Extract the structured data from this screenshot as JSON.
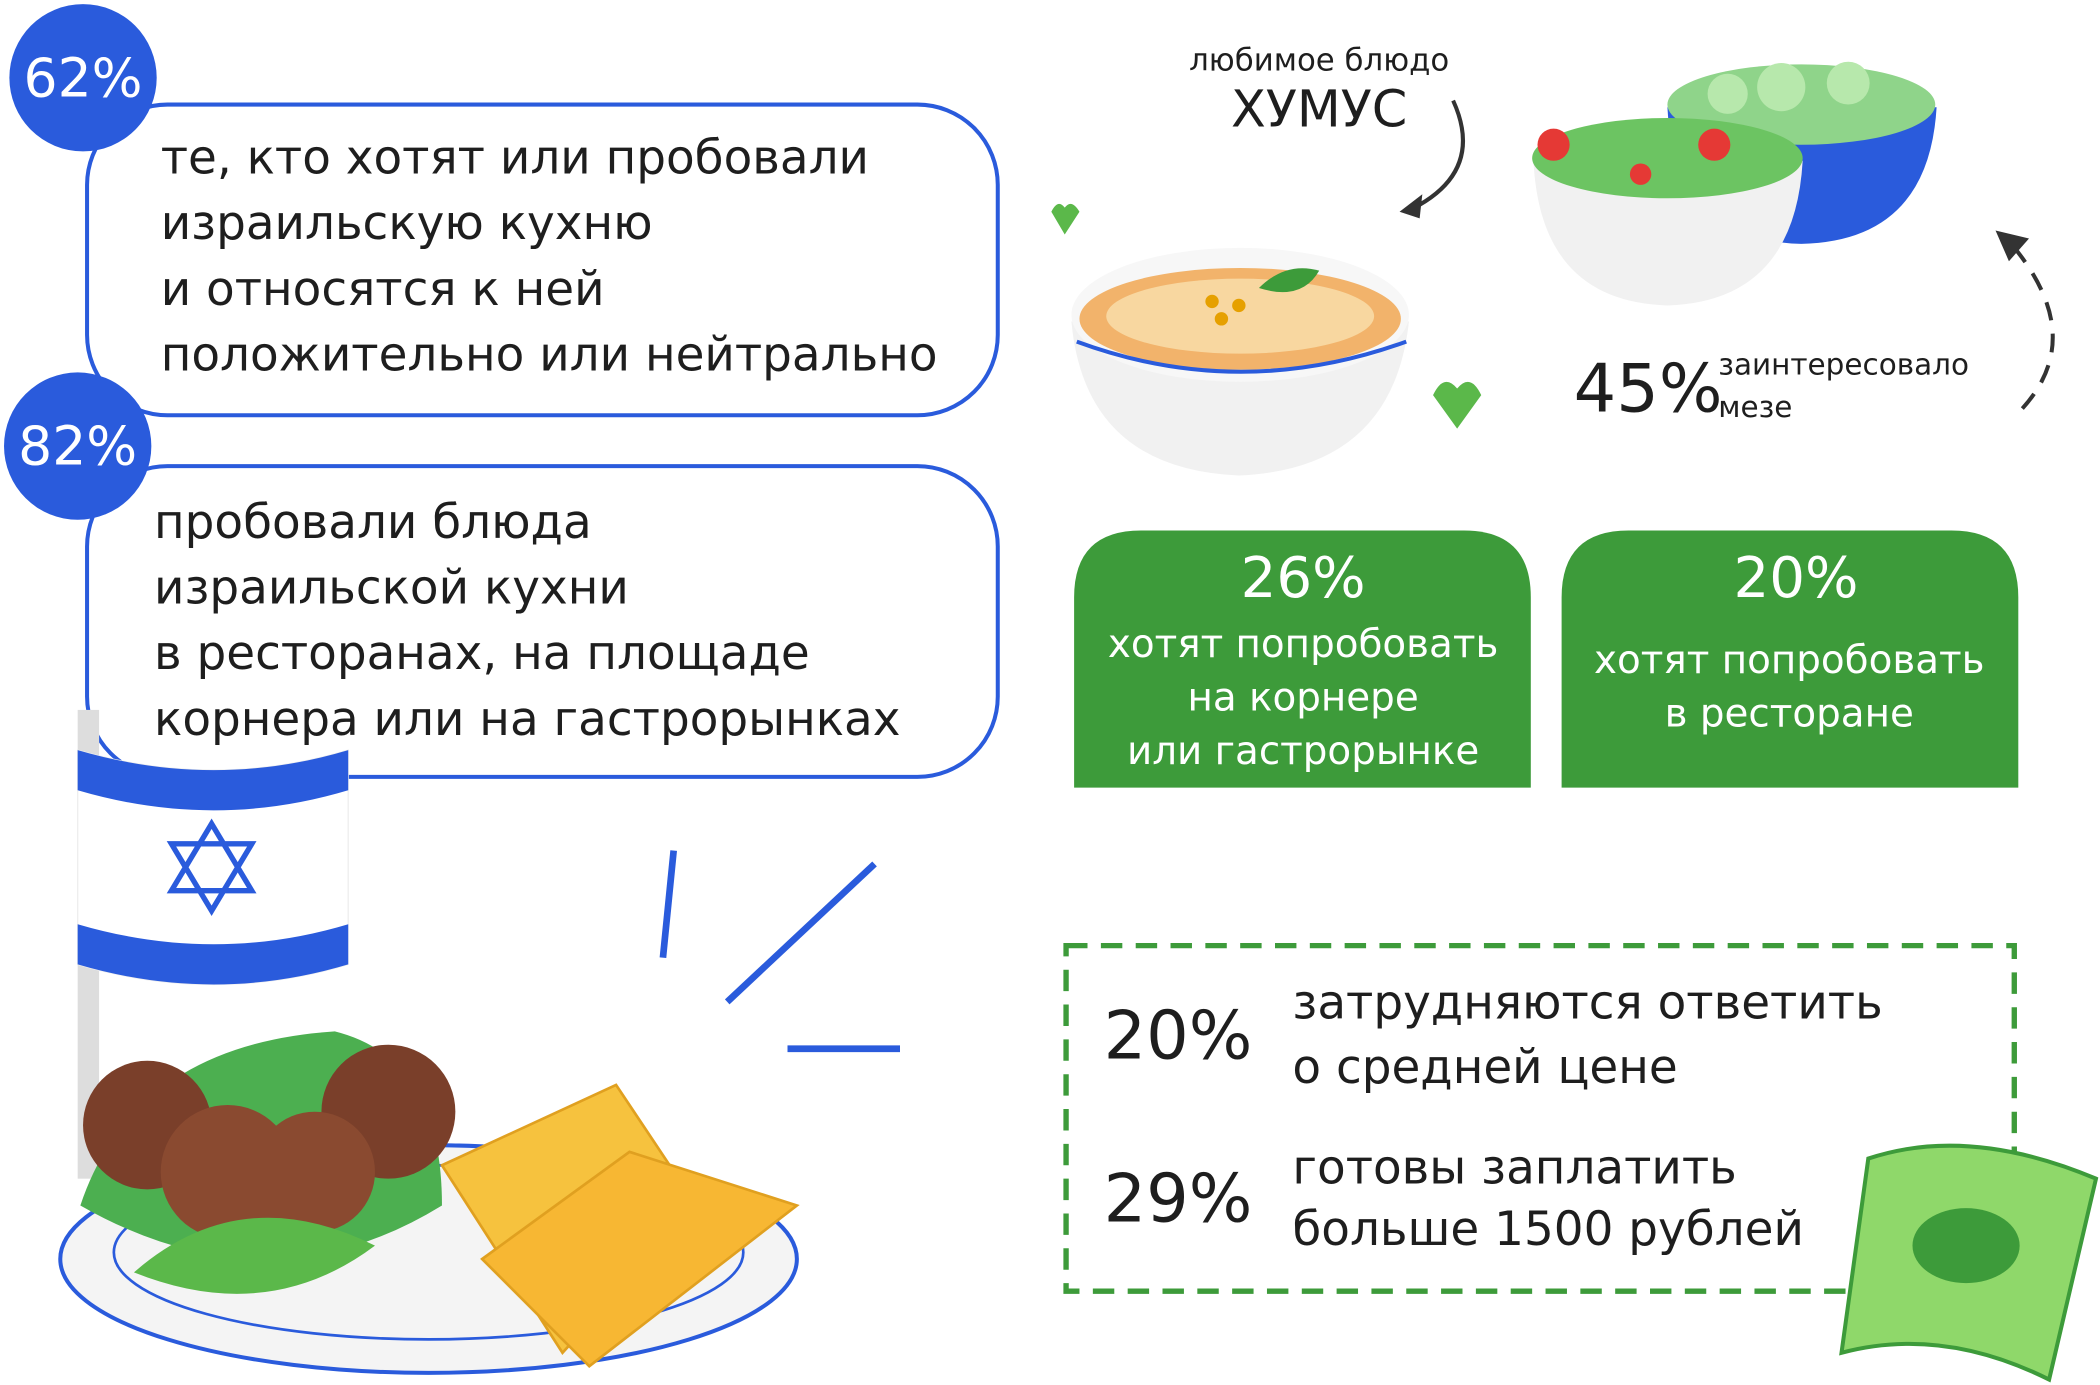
{
  "stats": [
    {
      "percent": "62%",
      "lines": [
        "те, кто хотят или пробовали",
        "израильскую кухню",
        "и относятся к ней",
        "положительно или нейтрально"
      ]
    },
    {
      "percent": "82%",
      "lines": [
        "пробовали блюда",
        "израильской кухни",
        "в ресторанах, на площаде",
        "корнера или на гастрорынках"
      ]
    }
  ],
  "favorite": {
    "label": "любимое блюдо",
    "dish": "ХУМУС"
  },
  "meze": {
    "percent": "45%",
    "lines": [
      "заинтересовало",
      "мезе"
    ]
  },
  "green_cards": [
    {
      "percent": "26%",
      "lines": [
        "хотят попробовать",
        "на корнере",
        "или гастрорынке"
      ]
    },
    {
      "percent": "20%",
      "lines": [
        "хотят попробовать",
        "в ресторане"
      ]
    }
  ],
  "price": [
    {
      "percent": "20%",
      "lines": [
        "затрудняются ответить",
        "о средней цене"
      ]
    },
    {
      "percent": "29%",
      "lines": [
        "готовы заплатить",
        "больше 1500 рублей"
      ]
    }
  ]
}
